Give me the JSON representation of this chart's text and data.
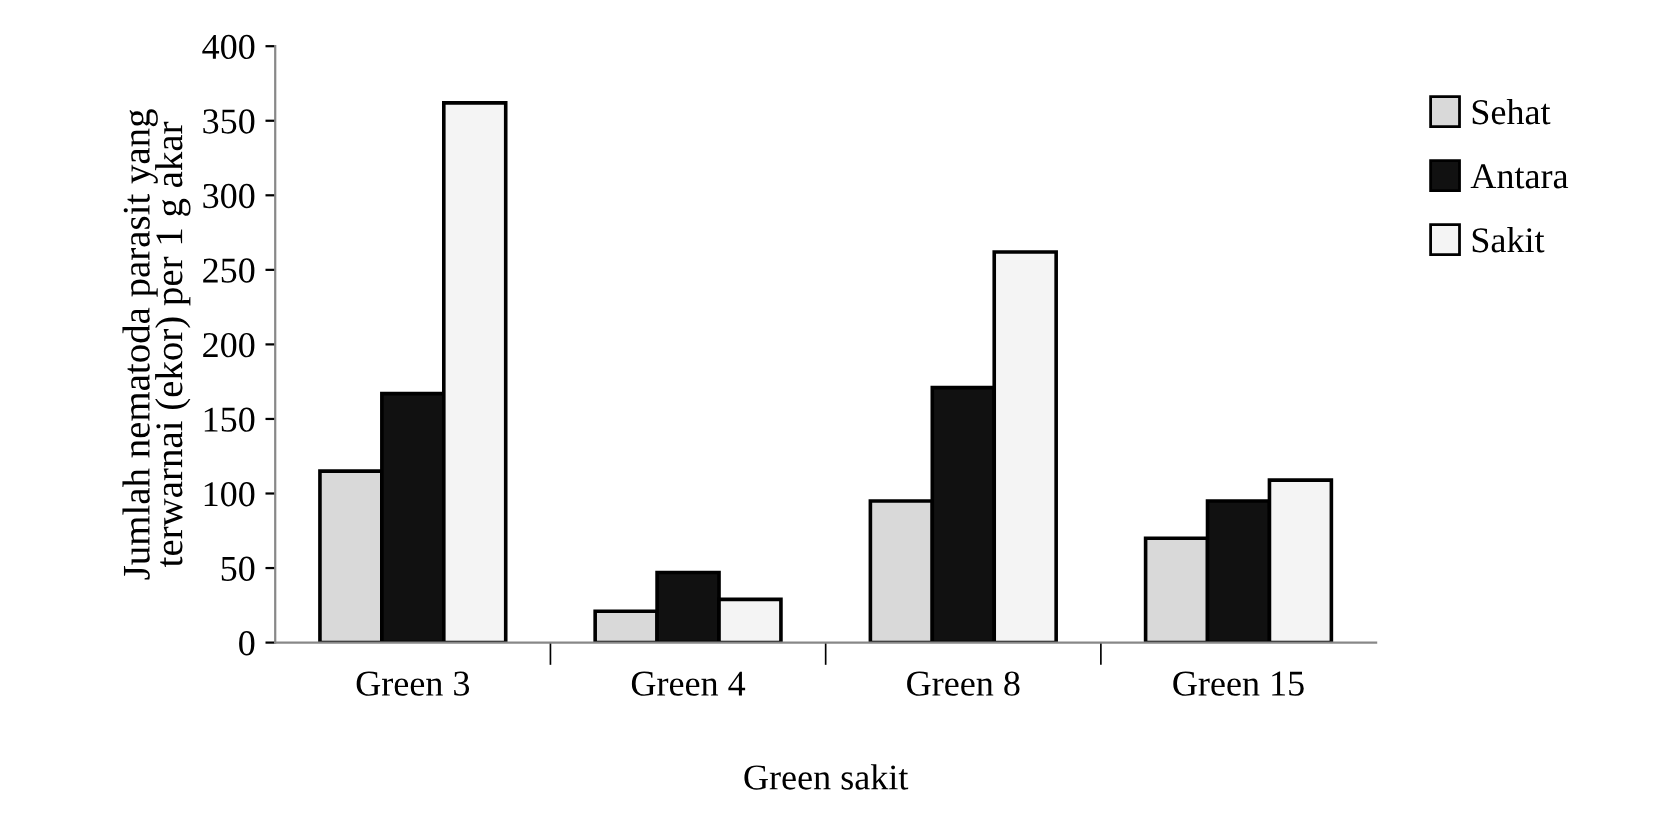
{
  "chart_data": {
    "type": "bar",
    "categories": [
      "Green 3",
      "Green 4",
      "Green 8",
      "Green 15"
    ],
    "series": [
      {
        "name": "Sehat",
        "color": "#d9d9d9",
        "values": [
          115,
          21,
          95,
          70
        ]
      },
      {
        "name": "Antara",
        "color": "#111111",
        "values": [
          167,
          47,
          171,
          95
        ]
      },
      {
        "name": "Sakit",
        "color": "#f4f4f4",
        "values": [
          362,
          29,
          262,
          109
        ]
      }
    ],
    "xlabel": "Green sakit",
    "ylabel": "Jumlah nematoda parasit yang\nterwarnai (ekor) per 1 g akar",
    "ylim": [
      0,
      400
    ],
    "yticks": [
      0,
      50,
      100,
      150,
      200,
      250,
      300,
      350,
      400
    ],
    "grid": false,
    "legend": "top right"
  }
}
